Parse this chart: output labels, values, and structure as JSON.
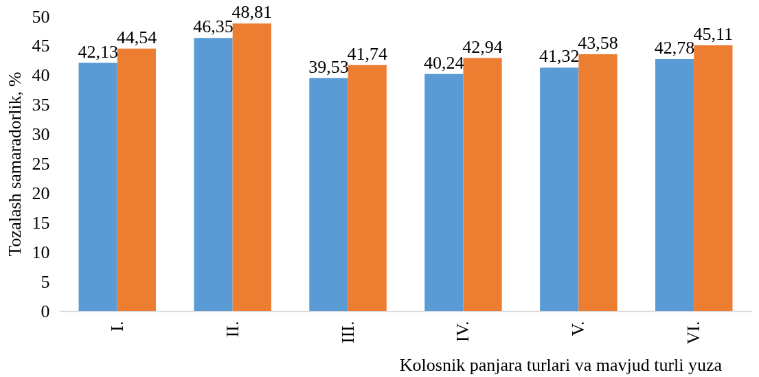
{
  "chart_data": {
    "type": "bar",
    "xlabel": "Kolosnik panjara turlari va mavjud turli yuza",
    "ylabel": "Tozalash samaradorlik, %",
    "categories": [
      "I.",
      "II.",
      "III.",
      "IV.",
      "V.",
      "VI."
    ],
    "series": [
      {
        "color": "#5b9bd5",
        "values": [
          42.13,
          46.35,
          39.53,
          40.24,
          41.32,
          42.78
        ],
        "value_labels": [
          "42,13",
          "46,35",
          "39,53",
          "40,24",
          "41,32",
          "42,78"
        ]
      },
      {
        "color": "#ed7d31",
        "values": [
          44.54,
          48.81,
          41.74,
          42.94,
          43.58,
          45.11
        ],
        "value_labels": [
          "44,54",
          "48,81",
          "41,74",
          "42,94",
          "43,58",
          "45,11"
        ]
      }
    ],
    "ylim": [
      0,
      50
    ],
    "yticks": [
      0,
      5,
      10,
      15,
      20,
      25,
      30,
      35,
      40,
      45,
      50
    ],
    "grid": false,
    "legend": false
  }
}
